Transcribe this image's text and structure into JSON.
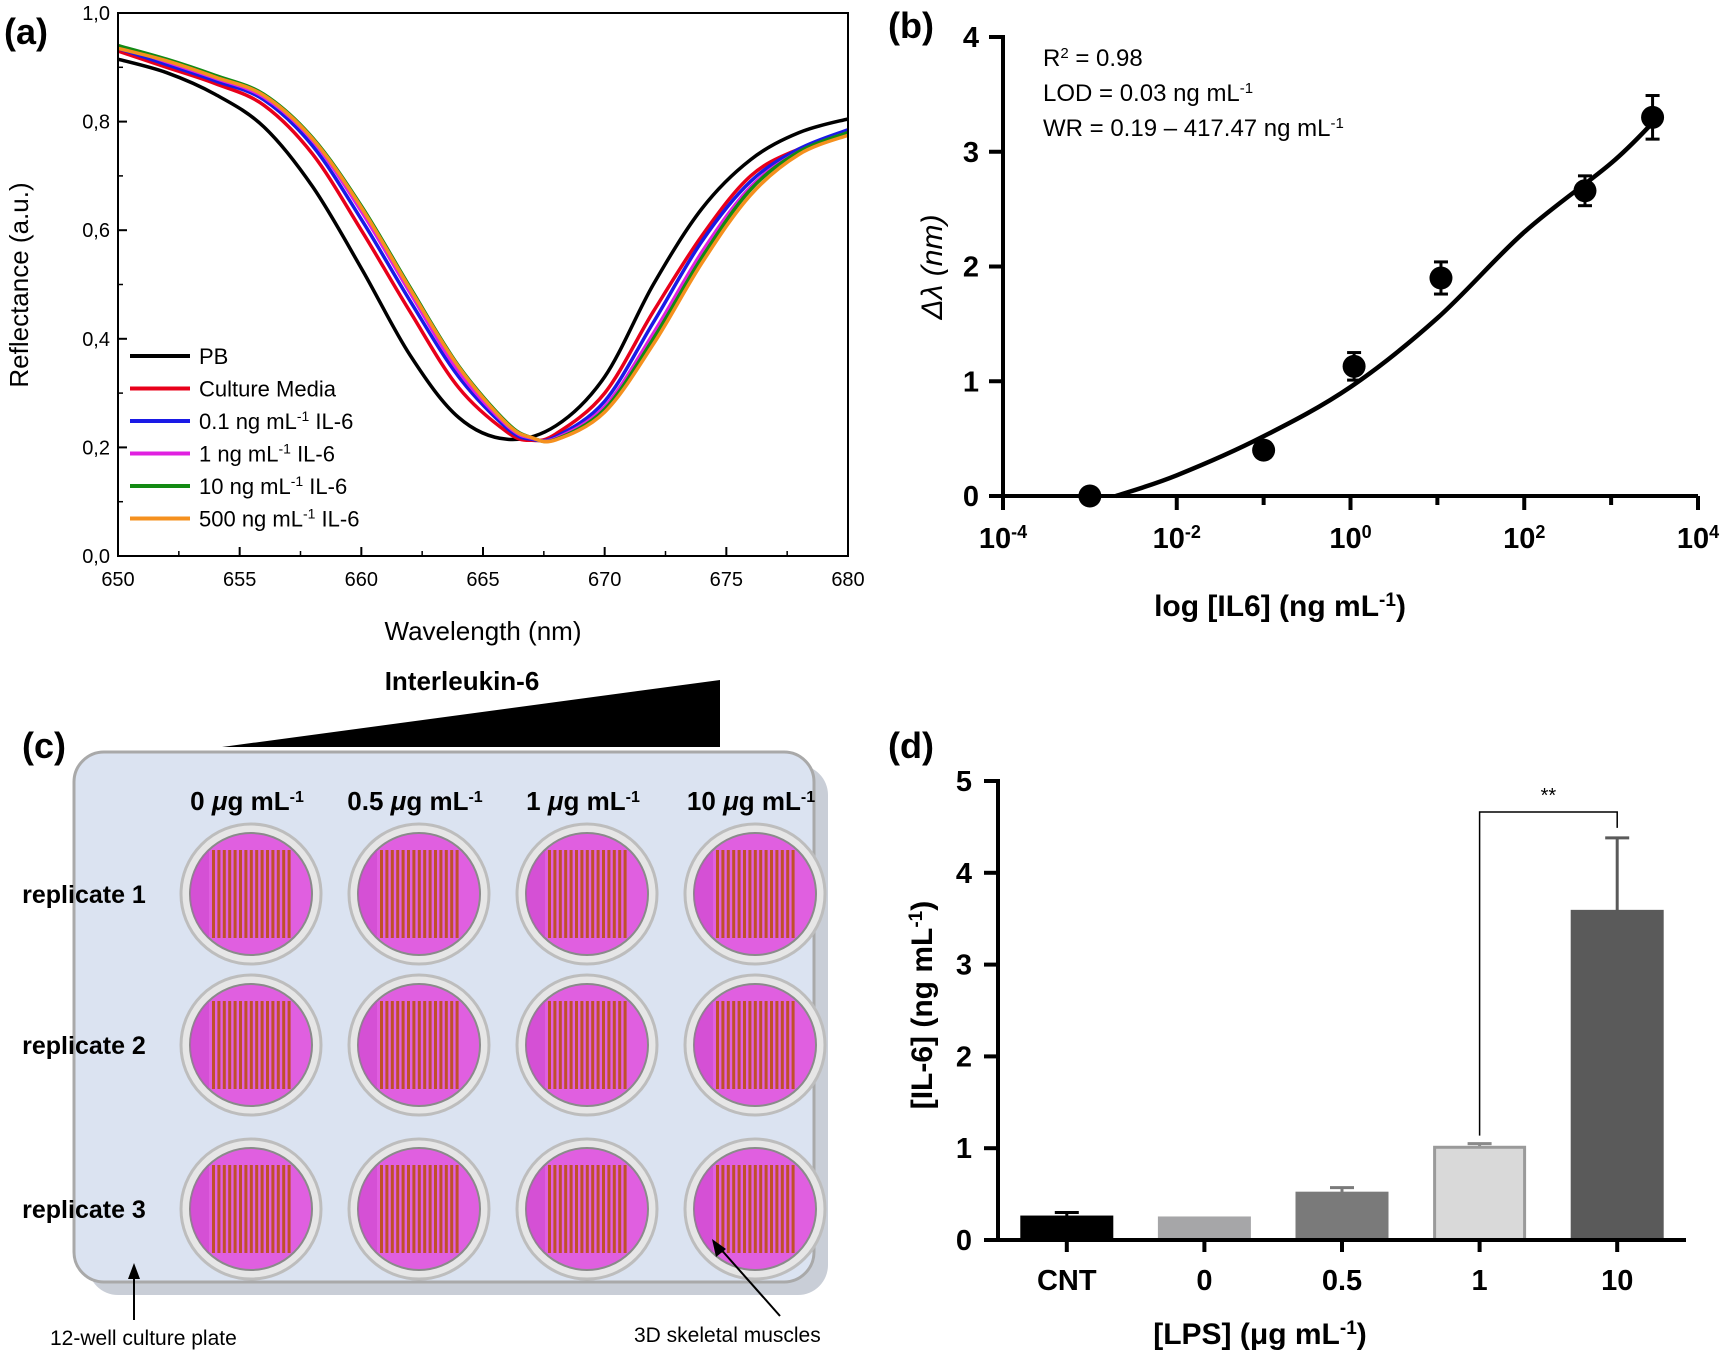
{
  "panels": {
    "a": {
      "label": "(a)"
    },
    "b": {
      "label": "(b)"
    },
    "c": {
      "label": "(c)"
    },
    "d": {
      "label": "(d)"
    }
  },
  "chart_data": [
    {
      "id": "a",
      "type": "line",
      "xlabel": "Wavelength (nm)",
      "ylabel": "Reflectance (a.u.)",
      "xlim": [
        650,
        680
      ],
      "ylim": [
        0.0,
        1.0
      ],
      "xticks": [
        650,
        655,
        660,
        665,
        670,
        675,
        680
      ],
      "xtick_labels": [
        "650",
        "655",
        "660",
        "665",
        "670",
        "675",
        "680"
      ],
      "yticks": [
        0.0,
        0.2,
        0.4,
        0.6,
        0.8,
        1.0
      ],
      "ytick_labels": [
        "0,0",
        "0,2",
        "0,4",
        "0,6",
        "0,8",
        "1,0"
      ],
      "legend_position": "bottom-left",
      "series": [
        {
          "name": "PB",
          "label_main": "PB",
          "label_sup": "",
          "label_tail": "",
          "color": "#000000",
          "x": [
            650,
            652,
            654,
            656,
            658,
            660,
            662,
            664,
            666,
            668,
            670,
            672,
            674,
            676,
            678,
            680
          ],
          "y": [
            0.915,
            0.89,
            0.85,
            0.79,
            0.68,
            0.53,
            0.37,
            0.255,
            0.215,
            0.24,
            0.33,
            0.5,
            0.64,
            0.73,
            0.78,
            0.805
          ]
        },
        {
          "name": "Culture Media",
          "label_main": "Culture Media",
          "label_sup": "",
          "label_tail": "",
          "color": "#e8001a",
          "x": [
            650,
            652,
            654,
            656,
            658,
            660,
            662,
            664,
            666,
            667,
            668,
            670,
            672,
            674,
            676,
            678,
            680
          ],
          "y": [
            0.93,
            0.9,
            0.87,
            0.83,
            0.74,
            0.6,
            0.45,
            0.31,
            0.228,
            0.213,
            0.225,
            0.3,
            0.45,
            0.59,
            0.7,
            0.75,
            0.78
          ]
        },
        {
          "name": "0.1 ng mL-1 IL-6",
          "label_main": "0.1 ng mL",
          "label_sup": "-1",
          "label_tail": " IL-6",
          "color": "#1a1ae6",
          "x": [
            650,
            652,
            654,
            656,
            658,
            660,
            662,
            664,
            666,
            667,
            668,
            670,
            672,
            674,
            676,
            678,
            680
          ],
          "y": [
            0.935,
            0.905,
            0.875,
            0.84,
            0.755,
            0.62,
            0.47,
            0.33,
            0.235,
            0.215,
            0.22,
            0.285,
            0.43,
            0.58,
            0.69,
            0.75,
            0.785
          ]
        },
        {
          "name": "1 ng mL-1 IL-6",
          "label_main": "1 ng mL",
          "label_sup": "-1",
          "label_tail": " IL-6",
          "color": "#e020e0",
          "x": [
            650,
            652,
            654,
            656,
            658,
            660,
            662,
            664,
            666,
            667,
            668,
            670,
            672,
            674,
            676,
            678,
            680
          ],
          "y": [
            0.94,
            0.91,
            0.88,
            0.845,
            0.765,
            0.635,
            0.485,
            0.34,
            0.24,
            0.217,
            0.217,
            0.275,
            0.41,
            0.56,
            0.68,
            0.745,
            0.78
          ]
        },
        {
          "name": "10 ng mL-1 IL-6",
          "label_main": "10 ng mL",
          "label_sup": "-1",
          "label_tail": " IL-6",
          "color": "#138a13",
          "x": [
            650,
            652,
            654,
            656,
            658,
            660,
            662,
            664,
            666,
            667,
            668,
            670,
            672,
            674,
            676,
            678,
            680
          ],
          "y": [
            0.94,
            0.915,
            0.885,
            0.85,
            0.77,
            0.645,
            0.495,
            0.35,
            0.245,
            0.218,
            0.215,
            0.27,
            0.4,
            0.55,
            0.675,
            0.745,
            0.78
          ]
        },
        {
          "name": "500 ng mL-1 IL-6",
          "label_main": "500 ng mL",
          "label_sup": "-1",
          "label_tail": " IL-6",
          "color": "#f5901e",
          "x": [
            650,
            652,
            654,
            656,
            658,
            660,
            662,
            664,
            666,
            667,
            668,
            670,
            672,
            674,
            676,
            678,
            680
          ],
          "y": [
            0.935,
            0.912,
            0.882,
            0.848,
            0.768,
            0.642,
            0.492,
            0.348,
            0.243,
            0.218,
            0.214,
            0.265,
            0.39,
            0.54,
            0.665,
            0.74,
            0.775
          ]
        }
      ]
    },
    {
      "id": "b",
      "type": "scatter",
      "xscale": "log",
      "xlim_exp": [
        -4,
        4
      ],
      "ylim": [
        0,
        4
      ],
      "yticks": [
        0,
        1,
        2,
        3,
        4
      ],
      "ytick_labels": [
        "0",
        "1",
        "2",
        "3",
        "4"
      ],
      "xtick_exps": [
        -4,
        -2,
        0,
        2,
        4
      ],
      "xtick_labels": [
        {
          "base": "10",
          "exp": "-4"
        },
        {
          "base": "10",
          "exp": "-2"
        },
        {
          "base": "10",
          "exp": "0"
        },
        {
          "base": "10",
          "exp": "2"
        },
        {
          "base": "10",
          "exp": "4"
        }
      ],
      "ylabel": "Δλ (nm)",
      "xlabel": {
        "main": "log [IL6] (ng mL",
        "sup": "-1",
        "tail": ")"
      },
      "annotations": {
        "r2": {
          "main": "R",
          "sup": "2",
          "tail": " = 0.98"
        },
        "lod": {
          "main": "LOD = 0.03 ng mL",
          "sup": "-1",
          "tail": ""
        },
        "wr": {
          "main": "WR = 0.19 – 417.47 ng mL",
          "sup": "-1",
          "tail": ""
        }
      },
      "points": [
        {
          "x": 0.001,
          "y": 0.0,
          "err": 0.0
        },
        {
          "x": 0.1,
          "y": 0.4,
          "err": 0.03
        },
        {
          "x": 1.1,
          "y": 1.13,
          "err": 0.12
        },
        {
          "x": 11,
          "y": 1.9,
          "err": 0.14
        },
        {
          "x": 500,
          "y": 2.66,
          "err": 0.13
        },
        {
          "x": 3000,
          "y": 3.3,
          "err": 0.19
        }
      ],
      "fit": {
        "xexp": [
          -2.7,
          -2,
          -1,
          0,
          1,
          2,
          3,
          3.5
        ],
        "y": [
          0.0,
          0.18,
          0.52,
          0.95,
          1.55,
          2.3,
          2.9,
          3.27
        ]
      }
    },
    {
      "id": "d",
      "type": "bar",
      "categories": [
        "CNT",
        "0",
        "0.5",
        "1",
        "10"
      ],
      "values": [
        0.25,
        0.24,
        0.51,
        1.01,
        3.58
      ],
      "errors": [
        0.05,
        0.0,
        0.06,
        0.04,
        0.8
      ],
      "colors": [
        "#000000",
        "#a6a6a8",
        "#7a7a7a",
        "#d9d9d9",
        "#5a5a5a"
      ],
      "ylim": [
        0,
        5
      ],
      "yticks": [
        0,
        1,
        2,
        3,
        4,
        5
      ],
      "ytick_labels": [
        "0",
        "1",
        "2",
        "3",
        "4",
        "5"
      ],
      "ylabel": {
        "main": "[IL-6] (ng mL",
        "sup": "-1",
        "tail": ")"
      },
      "xlabel": {
        "main": "[LPS] (μg mL",
        "sup": "-1",
        "tail": ")"
      },
      "significance": {
        "from": "1",
        "to": "10",
        "label": "**"
      }
    }
  ],
  "diagram_c": {
    "gradient_title": "Interleukin-6",
    "columns": [
      {
        "main": "0 ",
        "mu": "μ",
        "rest": "g mL",
        "sup": "-1"
      },
      {
        "main": "0.5 ",
        "mu": "μ",
        "rest": "g mL",
        "sup": "-1"
      },
      {
        "main": "1 ",
        "mu": "μ",
        "rest": "g mL",
        "sup": "-1"
      },
      {
        "main": "10 ",
        "mu": "μ",
        "rest": "g mL",
        "sup": "-1"
      }
    ],
    "rows": [
      "replicate 1",
      "replicate 2",
      "replicate 3"
    ],
    "plate_label": "12-well culture plate",
    "muscle_label": "3D skeletal muscles",
    "colors": {
      "plate": "#dbe3f1",
      "plate_shadow": "#c9ced7",
      "well_ring": "#bdbdbd",
      "well": "#e05fe0",
      "muscle": "#c0502a"
    }
  }
}
